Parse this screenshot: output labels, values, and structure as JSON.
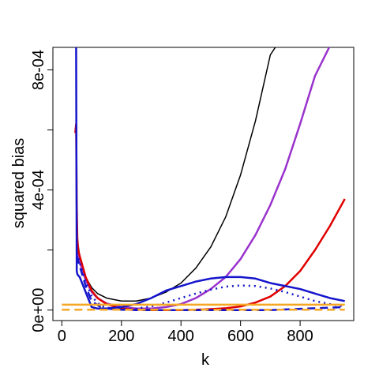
{
  "chart_data": {
    "type": "line",
    "title": "",
    "xlabel": "k",
    "ylabel": "squared bias",
    "xlim": [
      -30,
      980
    ],
    "ylim": [
      -3.5e-05,
      0.000875
    ],
    "grid": false,
    "legend": "none",
    "x_ticks": [
      0,
      200,
      400,
      600,
      800
    ],
    "x_tick_labels": [
      "0",
      "200",
      "400",
      "600",
      "800"
    ],
    "y_ticks": [
      0,
      0.0002,
      0.0004,
      0.0006,
      0.0008
    ],
    "y_tick_labels": [
      "0e+00",
      "",
      "4e-04",
      "",
      "8e-04"
    ],
    "series": [
      {
        "color": "#000000",
        "width": 1.5,
        "dash": "",
        "x": [
          50,
          60,
          80,
          100,
          120,
          150,
          200,
          250,
          300,
          350,
          400,
          450,
          500,
          550,
          600,
          650,
          700,
          720
        ],
        "y": [
          0.00025,
          0.00018,
          0.00011,
          7.5e-05,
          5.5e-05,
          4e-05,
          3e-05,
          3e-05,
          4e-05,
          6e-05,
          9e-05,
          0.00014,
          0.00021,
          0.00031,
          0.00045,
          0.00063,
          0.00085,
          0.00088
        ]
      },
      {
        "color": "#9932CC",
        "width": 2.5,
        "dash": "",
        "x": [
          50,
          60,
          80,
          100,
          120,
          150,
          200,
          250,
          300,
          350,
          400,
          450,
          500,
          550,
          600,
          650,
          700,
          750,
          800,
          850,
          900
        ],
        "y": [
          0.00022,
          0.00016,
          0.0001,
          6e-05,
          4e-05,
          2.2e-05,
          1e-05,
          5e-06,
          5e-06,
          1e-05,
          2e-05,
          4e-05,
          7e-05,
          0.00011,
          0.00017,
          0.00025,
          0.00035,
          0.00047,
          0.00062,
          0.00078,
          0.00088
        ]
      },
      {
        "color": "#E00000",
        "width": 2.5,
        "dash": "",
        "x": [
          45,
          48,
          50,
          52,
          55,
          60,
          80,
          100,
          120,
          150,
          200,
          250,
          300,
          350,
          400,
          450,
          500,
          550,
          600,
          650,
          700,
          750,
          800,
          850,
          900,
          950
        ],
        "y": [
          0.00059,
          0.00062,
          0.00035,
          0.00024,
          0.0002,
          0.00018,
          0.00011,
          6.5e-05,
          4e-05,
          2e-05,
          5e-06,
          1e-06,
          0,
          0,
          0,
          1e-06,
          3e-06,
          6e-06,
          1.2e-05,
          2.5e-05,
          4.5e-05,
          8e-05,
          0.00013,
          0.0002,
          0.00028,
          0.00037
        ]
      },
      {
        "color": "#1515CC",
        "width": 2.5,
        "dash": "",
        "x": [
          48,
          49,
          50,
          52,
          55,
          60,
          80,
          100,
          120,
          150,
          200,
          250,
          300,
          350,
          400,
          450,
          500,
          550,
          600,
          650,
          700,
          750,
          800,
          850,
          900,
          950
        ],
        "y": [
          0.00088,
          0.0005,
          0.00013,
          0.00012,
          0.000115,
          0.00011,
          6e-05,
          1e-05,
          5e-06,
          5e-06,
          1e-05,
          2e-05,
          4e-05,
          6.5e-05,
          8e-05,
          9.5e-05,
          0.000105,
          0.00011,
          0.00011,
          0.000105,
          9e-05,
          8e-05,
          7e-05,
          5.5e-05,
          4e-05,
          3e-05
        ]
      },
      {
        "color": "#1515CC",
        "width": 2.5,
        "dash": "2,5",
        "x": [
          50,
          80,
          100,
          130,
          150,
          200,
          250,
          300,
          350,
          400,
          450,
          500,
          550,
          600,
          650,
          700,
          750,
          800,
          850,
          900,
          950
        ],
        "y": [
          0.00019,
          9.5e-05,
          4.5e-05,
          1.5e-05,
          8e-06,
          3e-06,
          5e-06,
          1.2e-05,
          2.5e-05,
          4e-05,
          5.5e-05,
          6.8e-05,
          7.8e-05,
          8.2e-05,
          8e-05,
          7.2e-05,
          6e-05,
          4.5e-05,
          3e-05,
          2e-05,
          1.2e-05
        ]
      },
      {
        "color": "#1515CC",
        "width": 2.5,
        "dash": "10,6",
        "x": [
          50,
          80,
          100,
          130,
          150,
          200,
          250,
          300,
          350,
          400,
          450,
          500,
          550,
          600,
          650,
          700,
          750,
          800,
          850,
          900,
          950
        ],
        "y": [
          0.00018,
          8e-05,
          3e-05,
          1e-05,
          5e-06,
          1e-06,
          0,
          0,
          0,
          0,
          0,
          0,
          0,
          0,
          0,
          0,
          2e-06,
          4e-06,
          6e-06,
          8e-06,
          1e-05
        ]
      },
      {
        "color": "#F5A623",
        "width": 2.5,
        "dash": "",
        "x": [
          0,
          950
        ],
        "y": [
          1.8e-05,
          1.8e-05
        ]
      },
      {
        "color": "#F5A623",
        "width": 2.5,
        "dash": "10,6",
        "x": [
          0,
          950
        ],
        "y": [
          1e-06,
          1e-06
        ]
      }
    ]
  }
}
